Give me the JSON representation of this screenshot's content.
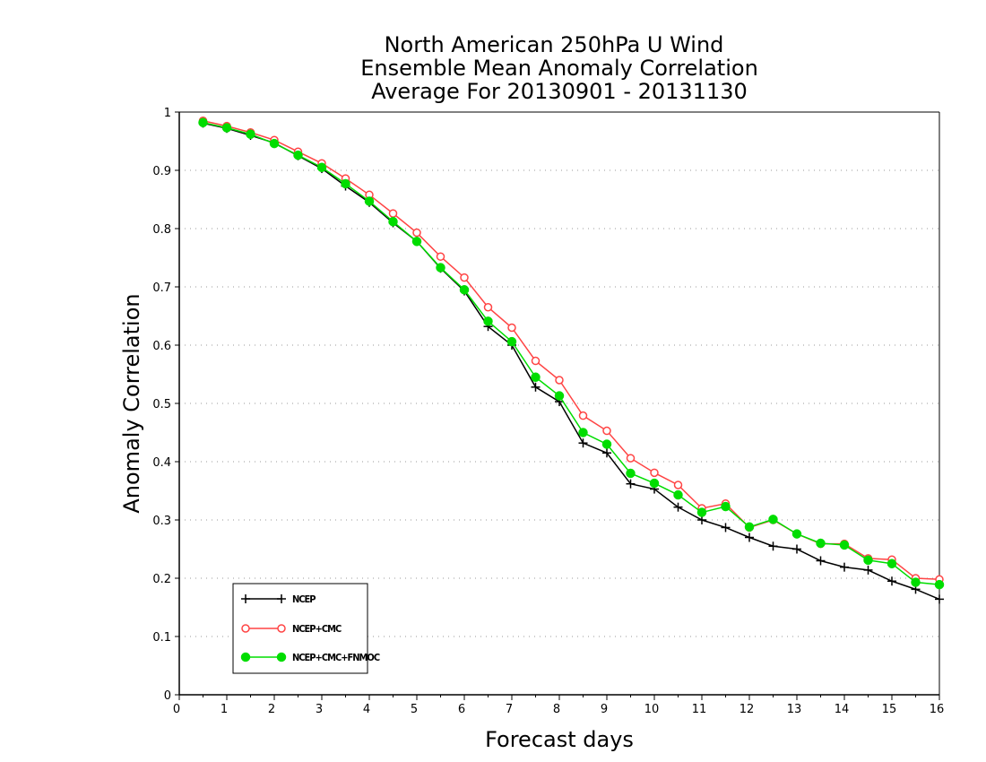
{
  "chart_data": {
    "type": "line",
    "title": [
      "North American 250hPa U Wind",
      "Ensemble Mean Anomaly Correlation",
      "Average For 20130901 - 20131130"
    ],
    "xlabel": "Forecast days",
    "ylabel": "Anomaly Correlation",
    "xlim": [
      0,
      16
    ],
    "ylim": [
      0,
      1
    ],
    "x_ticks": [
      "0",
      "1",
      "2",
      "3",
      "4",
      "5",
      "6",
      "7",
      "8",
      "9",
      "10",
      "11",
      "12",
      "13",
      "14",
      "15",
      "16"
    ],
    "y_ticks": [
      "0",
      "0.1",
      "0.2",
      "0.3",
      "0.4",
      "0.5",
      "0.6",
      "0.7",
      "0.8",
      "0.9",
      "1"
    ],
    "grid": "horizontal dotted",
    "legend_position": "bottom-left",
    "x": [
      0.5,
      1,
      1.5,
      2,
      2.5,
      3,
      3.5,
      4,
      4.5,
      5,
      5.5,
      6,
      6.5,
      7,
      7.5,
      8,
      8.5,
      9,
      9.5,
      10,
      10.5,
      11,
      11.5,
      12,
      12.5,
      13,
      13.5,
      14,
      14.5,
      15,
      15.5,
      16
    ],
    "series": [
      {
        "name": "NCEP",
        "color": "#000000",
        "marker": "plus",
        "values": [
          0.981,
          0.972,
          0.96,
          0.947,
          0.925,
          0.903,
          0.873,
          0.845,
          0.81,
          0.778,
          0.732,
          0.693,
          0.632,
          0.6,
          0.528,
          0.503,
          0.432,
          0.415,
          0.362,
          0.353,
          0.322,
          0.3,
          0.287,
          0.27,
          0.255,
          0.25,
          0.23,
          0.219,
          0.214,
          0.195,
          0.181,
          0.164
        ]
      },
      {
        "name": "NCEP+CMC",
        "color": "#ff4444",
        "marker": "open-circle",
        "values": [
          0.985,
          0.976,
          0.965,
          0.952,
          0.932,
          0.912,
          0.886,
          0.858,
          0.826,
          0.793,
          0.752,
          0.716,
          0.665,
          0.63,
          0.573,
          0.54,
          0.479,
          0.453,
          0.406,
          0.381,
          0.36,
          0.32,
          0.328,
          0.287,
          0.3,
          0.276,
          0.259,
          0.259,
          0.234,
          0.232,
          0.2,
          0.198
        ]
      },
      {
        "name": "NCEP+CMC+FNMOC",
        "color": "#00dd00",
        "marker": "filled-circle",
        "values": [
          0.982,
          0.973,
          0.962,
          0.946,
          0.926,
          0.905,
          0.877,
          0.847,
          0.812,
          0.778,
          0.733,
          0.695,
          0.641,
          0.606,
          0.545,
          0.513,
          0.45,
          0.43,
          0.38,
          0.363,
          0.343,
          0.313,
          0.323,
          0.288,
          0.301,
          0.276,
          0.26,
          0.257,
          0.231,
          0.225,
          0.193,
          0.189
        ]
      }
    ]
  }
}
